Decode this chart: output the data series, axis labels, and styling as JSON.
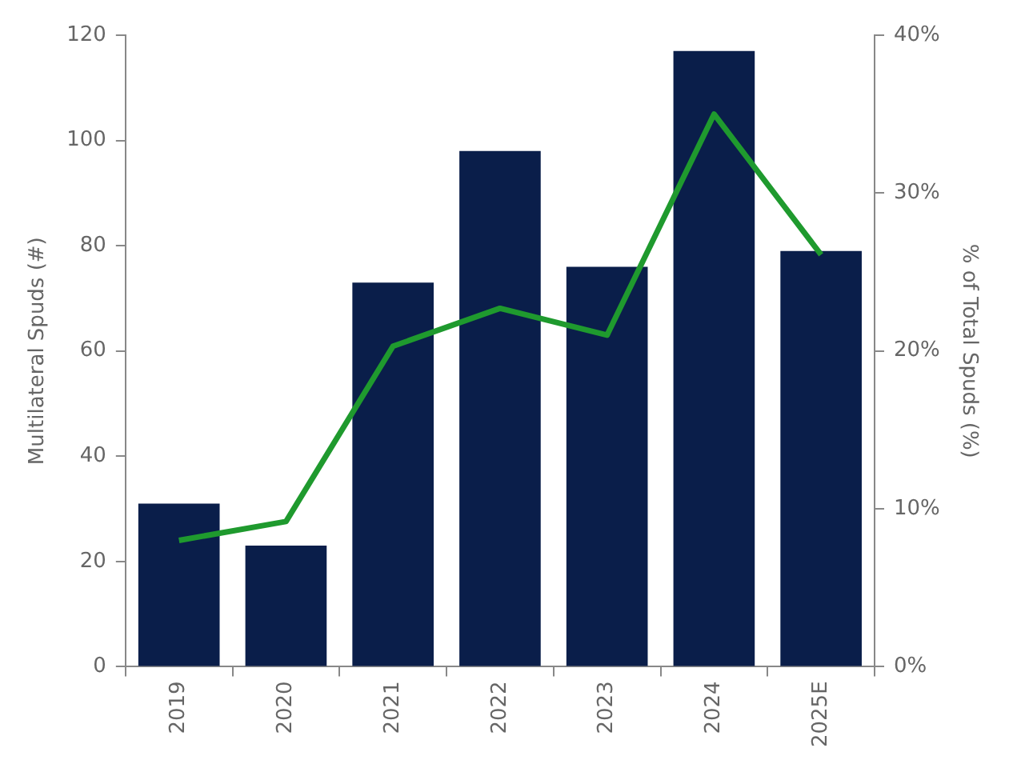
{
  "chart_data": {
    "type": "bar",
    "categories": [
      "2019",
      "2020",
      "2021",
      "2022",
      "2023",
      "2024",
      "2025E"
    ],
    "series": [
      {
        "color": "#0a1e4a",
        "values": [
          31,
          23,
          73,
          98,
          76,
          117,
          79
        ]
      },
      {
        "type": "line",
        "axis": "y2",
        "color": "#1f9a2e",
        "values": [
          8.0,
          9.2,
          20.3,
          22.7,
          21.0,
          35.0,
          26.1
        ]
      }
    ],
    "ylabel": "Multilateral Spuds (#)",
    "y2label": "% of Total Spuds (%)",
    "ylim": [
      0,
      120
    ],
    "yticks": [
      0,
      20,
      40,
      60,
      80,
      100,
      120
    ],
    "y2lim": [
      0,
      40
    ],
    "y2ticks": [
      {
        "value": 0,
        "label": "0%"
      },
      {
        "value": 10,
        "label": "10%"
      },
      {
        "value": 20,
        "label": "20%"
      },
      {
        "value": 30,
        "label": "30%"
      },
      {
        "value": 40,
        "label": "40%"
      }
    ],
    "grid": false,
    "legend": false,
    "marker": "none",
    "line_style": "solid"
  }
}
